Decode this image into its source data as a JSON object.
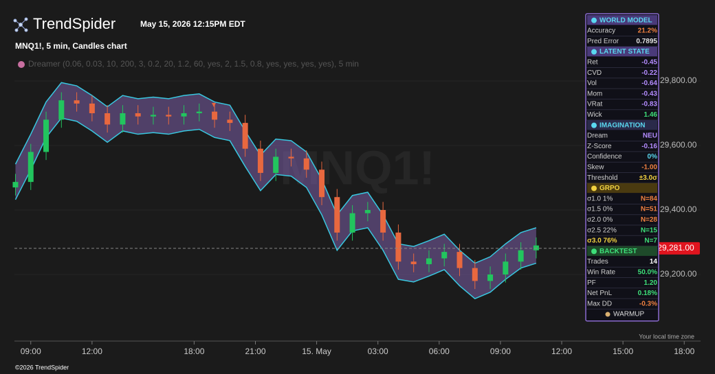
{
  "header": {
    "brand": "TrendSpider",
    "timestamp": "May 15, 2026 12:15PM EDT",
    "symbol": "MNQ1!, 5 min, Candles chart",
    "indicator": "Dreamer (0.06, 0.03, 10, 200, 3, 0.2, 20, 1.2, 60, yes, 2, 1.5, 0.8, yes, yes, yes, yes), 5 min",
    "watermark": "MNQ1!"
  },
  "chart_data": {
    "type": "candlestick",
    "x": [
      -0.75,
      0,
      0.75,
      1.5,
      2.25,
      3,
      3.75,
      4.5,
      5.25,
      6,
      6.75,
      7.5,
      8.25,
      9,
      9.75,
      10.5,
      11.25,
      12,
      12.75,
      13.5,
      14.25,
      15,
      15.75,
      16.5,
      17.25,
      18,
      18.75,
      19.5,
      20.25,
      21,
      21.75,
      22.5,
      23.25,
      24,
      24.75
    ],
    "open": [
      29470,
      29487,
      29580,
      29680,
      29740,
      29730,
      29700,
      29665,
      29700,
      29690,
      29695,
      29690,
      29700,
      29705,
      29680,
      29670,
      29590,
      29515,
      29565,
      29560,
      29525,
      29440,
      29330,
      29390,
      29400,
      29330,
      29240,
      29232,
      29250,
      29270,
      29220,
      29180,
      29200,
      29240,
      29275
    ],
    "high": [
      29512,
      29605,
      29705,
      29765,
      29765,
      29755,
      29725,
      29725,
      29725,
      29720,
      29720,
      29725,
      29730,
      29730,
      29705,
      29695,
      29615,
      29590,
      29590,
      29585,
      29550,
      29465,
      29415,
      29425,
      29425,
      29355,
      29265,
      29275,
      29295,
      29295,
      29245,
      29225,
      29265,
      29300,
      29315
    ],
    "low": [
      29445,
      29462,
      29555,
      29655,
      29705,
      29675,
      29640,
      29640,
      29665,
      29665,
      29665,
      29665,
      29675,
      29655,
      29645,
      29565,
      29490,
      29490,
      29535,
      29500,
      29415,
      29305,
      29305,
      29365,
      29305,
      29215,
      29207,
      29207,
      29225,
      29195,
      29155,
      29155,
      29175,
      29215,
      29250
    ],
    "close": [
      29487,
      29580,
      29680,
      29740,
      29730,
      29700,
      29665,
      29700,
      29690,
      29695,
      29690,
      29700,
      29705,
      29680,
      29670,
      29590,
      29515,
      29565,
      29560,
      29525,
      29440,
      29330,
      29390,
      29400,
      29330,
      29240,
      29232,
      29250,
      29270,
      29220,
      29180,
      29200,
      29240,
      29275,
      29290
    ],
    "band_upper": [
      29542,
      29635,
      29735,
      29795,
      29785,
      29755,
      29720,
      29755,
      29745,
      29750,
      29745,
      29755,
      29760,
      29735,
      29725,
      29645,
      29570,
      29620,
      29615,
      29580,
      29495,
      29385,
      29445,
      29455,
      29385,
      29295,
      29287,
      29305,
      29325,
      29275,
      29235,
      29255,
      29295,
      29330,
      29345
    ],
    "band_lower": [
      29432,
      29525,
      29625,
      29685,
      29675,
      29645,
      29610,
      29645,
      29635,
      29640,
      29635,
      29645,
      29650,
      29625,
      29615,
      29535,
      29460,
      29510,
      29505,
      29470,
      29385,
      29275,
      29335,
      29345,
      29275,
      29185,
      29177,
      29195,
      29215,
      29165,
      29125,
      29145,
      29185,
      29220,
      29235
    ],
    "up_color": "#22c55e",
    "down_color": "#e8683f",
    "band_color": "#7b5ea7",
    "band_edge_color": "#38c8e0",
    "xlim": [
      -0.8,
      32.8
    ],
    "xticks": [
      {
        "value": 0,
        "label": "09:00"
      },
      {
        "value": 3,
        "label": "12:00"
      },
      {
        "value": 8,
        "label": "18:00"
      },
      {
        "value": 11,
        "label": "21:00"
      },
      {
        "value": 14,
        "label": "15. May"
      },
      {
        "value": 17,
        "label": "03:00"
      },
      {
        "value": 20,
        "label": "06:00"
      },
      {
        "value": 23,
        "label": "09:00"
      },
      {
        "value": 26,
        "label": "12:00"
      },
      {
        "value": 29,
        "label": "15:00"
      },
      {
        "value": 32,
        "label": "18:00"
      }
    ],
    "ylim": [
      29000,
      30000
    ],
    "yticks": [
      {
        "value": 29200,
        "label": "29,200.00"
      },
      {
        "value": 29400,
        "label": "29,400.00"
      },
      {
        "value": 29600,
        "label": "29,600.00"
      },
      {
        "value": 29800,
        "label": "29,800.00"
      }
    ],
    "last_price": {
      "value": 29281,
      "label": "29,281.00"
    },
    "grid": true,
    "timezone_note": "Your local time zone"
  },
  "panel": {
    "sections": [
      {
        "title": "WORLD MODEL",
        "title_color": "#5ad8f0",
        "bg": "#4a3a7a",
        "rows": [
          {
            "label": "Accuracy",
            "value": "21.2%",
            "color": "#f08040"
          },
          {
            "label": "Pred Error",
            "value": "0.7895",
            "color": "#e0e0e0"
          }
        ]
      },
      {
        "title": "LATENT STATE",
        "title_color": "#5ad8f0",
        "bg": "#4a3a7a",
        "rows": [
          {
            "label": "Ret",
            "value": "-0.45",
            "color": "#b48cff"
          },
          {
            "label": "CVD",
            "value": "-0.22",
            "color": "#b48cff"
          },
          {
            "label": "Vol",
            "value": "-0.64",
            "color": "#b48cff"
          },
          {
            "label": "Mom",
            "value": "-0.43",
            "color": "#b48cff"
          },
          {
            "label": "VRat",
            "value": "-0.83",
            "color": "#b48cff"
          },
          {
            "label": "Wick",
            "value": "1.46",
            "color": "#3ee07a"
          }
        ]
      },
      {
        "title": "IMAGINATION",
        "title_color": "#5ad8f0",
        "bg": "#2a2a4a",
        "rows": [
          {
            "label": "Dream",
            "value": "NEU",
            "color": "#b48cff"
          },
          {
            "label": "Z-Score",
            "value": "-0.16",
            "color": "#b48cff"
          },
          {
            "label": "Confidence",
            "value": "0%",
            "color": "#5ad8f0"
          },
          {
            "label": "Skew",
            "value": "-1.00",
            "color": "#f08040"
          },
          {
            "label": "Threshold",
            "value": "±3.0σ",
            "color": "#f0d040"
          }
        ]
      },
      {
        "title": "GRPO",
        "title_color": "#f0d040",
        "bg": "#4a3a10",
        "rows": [
          {
            "label": "σ1.0 1%",
            "value": "N=84",
            "color": "#f08040"
          },
          {
            "label": "σ1.5 0%",
            "value": "N=51",
            "color": "#f08040"
          },
          {
            "label": "σ2.0 0%",
            "value": "N=28",
            "color": "#f08040"
          },
          {
            "label": "σ2.5 22%",
            "value": "N=15",
            "color": "#3ee07a"
          },
          {
            "label": "σ3.0 76%",
            "value": "N=7",
            "color": "#3ee07a",
            "label_color": "#f0d040"
          }
        ]
      },
      {
        "title": "BACKTEST",
        "title_color": "#3ee07a",
        "bg": "#1e4a2a",
        "rows": [
          {
            "label": "Trades",
            "value": "14",
            "color": "#ffffff"
          },
          {
            "label": "Win Rate",
            "value": "50.0%",
            "color": "#3ee07a"
          },
          {
            "label": "PF",
            "value": "1.20",
            "color": "#3ee07a"
          },
          {
            "label": "Net PnL",
            "value": "0.18%",
            "color": "#3ee07a"
          },
          {
            "label": "Max DD",
            "value": "-0.3%",
            "color": "#f08040"
          }
        ]
      }
    ],
    "footer": "WARMUP"
  },
  "footer": {
    "copyright": "©2026 TrendSpider"
  }
}
